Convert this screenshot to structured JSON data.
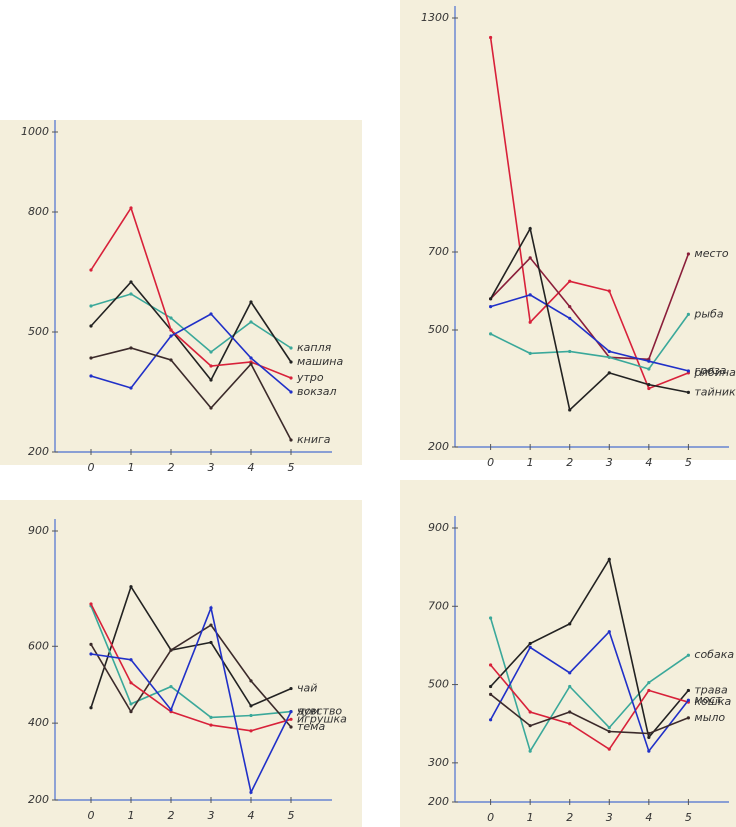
{
  "chart_data": [
    {
      "type": "line",
      "x": [
        0,
        1,
        2,
        3,
        4,
        5
      ],
      "xticks": [
        0,
        1,
        2,
        3,
        4,
        5
      ],
      "xlim": [
        -0.9,
        5.9
      ],
      "ylim": [
        200,
        1000
      ],
      "yticks": [
        200,
        500,
        800,
        1000
      ],
      "series": [
        {
          "name": "капля",
          "color": "#3aa89a",
          "values": [
            565,
            595,
            535,
            450,
            525,
            460
          ]
        },
        {
          "name": "машина",
          "color": "#222222",
          "values": [
            515,
            625,
            505,
            380,
            575,
            425
          ]
        },
        {
          "name": "утро",
          "color": "#d8213a",
          "values": [
            655,
            810,
            505,
            415,
            425,
            385
          ]
        },
        {
          "name": "вокзал",
          "color": "#2030c8",
          "values": [
            390,
            360,
            490,
            545,
            435,
            350
          ]
        },
        {
          "name": "книга",
          "color": "#3b2a2a",
          "values": [
            435,
            460,
            430,
            310,
            420,
            230
          ]
        }
      ]
    },
    {
      "type": "line",
      "x": [
        0,
        1,
        2,
        3,
        4,
        5
      ],
      "xticks": [
        0,
        1,
        2,
        3,
        4,
        5
      ],
      "xlim": [
        -0.9,
        5.9
      ],
      "ylim": [
        200,
        1300
      ],
      "yticks": [
        200,
        500,
        700,
        1300
      ],
      "series": [
        {
          "name": "рябина",
          "color": "#d8213a",
          "values": [
            1250,
            520,
            625,
            600,
            350,
            390
          ]
        },
        {
          "name": "место",
          "color": "#8a1e3a",
          "values": [
            580,
            685,
            560,
            430,
            425,
            695
          ]
        },
        {
          "name": "рыба",
          "color": "#3aa89a",
          "values": [
            490,
            440,
            445,
            430,
            400,
            540
          ]
        },
        {
          "name": "гроза",
          "color": "#2030c8",
          "values": [
            560,
            590,
            530,
            445,
            420,
            395
          ]
        },
        {
          "name": "тайник",
          "color": "#222222",
          "values": [
            580,
            760,
            295,
            390,
            360,
            340
          ]
        }
      ]
    },
    {
      "type": "line",
      "x": [
        0,
        1,
        2,
        3,
        4,
        5
      ],
      "xticks": [
        0,
        1,
        2,
        3,
        4,
        5
      ],
      "xlim": [
        -0.9,
        5.9
      ],
      "ylim": [
        200,
        900
      ],
      "yticks": [
        200,
        400,
        600,
        900
      ],
      "series": [
        {
          "name": "чай",
          "color": "#222222",
          "values": [
            440,
            755,
            590,
            610,
            445,
            490
          ]
        },
        {
          "name": "чувство",
          "color": "#3aa89a",
          "values": [
            705,
            450,
            495,
            415,
            420,
            430
          ]
        },
        {
          "name": "тема",
          "color": "#3b2a2a",
          "values": [
            605,
            430,
            590,
            655,
            510,
            390
          ]
        },
        {
          "name": "игрушка",
          "color": "#d8213a",
          "values": [
            710,
            505,
            430,
            395,
            380,
            410
          ]
        },
        {
          "name": "дом",
          "color": "#2030c8",
          "values": [
            580,
            565,
            435,
            700,
            220,
            430
          ]
        }
      ]
    },
    {
      "type": "line",
      "x": [
        0,
        1,
        2,
        3,
        4,
        5
      ],
      "xticks": [
        0,
        1,
        2,
        3,
        4,
        5
      ],
      "xlim": [
        -0.9,
        5.9
      ],
      "ylim": [
        200,
        900
      ],
      "yticks": [
        200,
        300,
        500,
        700,
        900
      ],
      "series": [
        {
          "name": "собака",
          "color": "#3aa89a",
          "values": [
            670,
            330,
            495,
            390,
            505,
            575
          ]
        },
        {
          "name": "трава",
          "color": "#222222",
          "values": [
            495,
            605,
            655,
            820,
            365,
            485
          ]
        },
        {
          "name": "кошка",
          "color": "#d8213a",
          "values": [
            550,
            430,
            400,
            335,
            485,
            455
          ]
        },
        {
          "name": "мост",
          "color": "#2030c8",
          "values": [
            410,
            595,
            530,
            635,
            330,
            460
          ]
        },
        {
          "name": "мыло",
          "color": "#3b2a2a",
          "values": [
            475,
            395,
            430,
            380,
            375,
            415
          ]
        }
      ]
    }
  ]
}
